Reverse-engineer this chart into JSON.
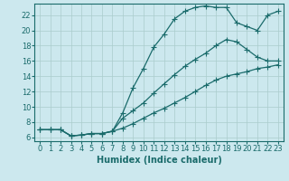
{
  "xlabel": "Humidex (Indice chaleur)",
  "ylabel": "",
  "xlim": [
    -0.5,
    23.5
  ],
  "ylim": [
    5.5,
    23.5
  ],
  "yticks": [
    6,
    8,
    10,
    12,
    14,
    16,
    18,
    20,
    22
  ],
  "xticks": [
    0,
    1,
    2,
    3,
    4,
    5,
    6,
    7,
    8,
    9,
    10,
    11,
    12,
    13,
    14,
    15,
    16,
    17,
    18,
    19,
    20,
    21,
    22,
    23
  ],
  "background_color": "#cce8ee",
  "grid_color": "#aacccc",
  "line_color": "#1a6b6b",
  "line1_x": [
    0,
    1,
    2,
    3,
    4,
    5,
    6,
    7,
    8,
    9,
    10,
    11,
    12,
    13,
    14,
    15,
    16,
    17,
    18,
    19,
    20,
    21,
    22,
    23
  ],
  "line1_y": [
    7.0,
    7.0,
    7.0,
    6.2,
    6.3,
    6.5,
    6.5,
    6.8,
    9.2,
    12.5,
    15.0,
    17.8,
    19.5,
    21.5,
    22.5,
    23.0,
    23.2,
    23.0,
    23.0,
    21.0,
    20.5,
    20.0,
    22.0,
    22.5
  ],
  "line2_x": [
    0,
    1,
    2,
    3,
    4,
    5,
    6,
    7,
    8,
    9,
    10,
    11,
    12,
    13,
    14,
    15,
    16,
    17,
    18,
    19,
    20,
    21,
    22,
    23
  ],
  "line2_y": [
    7.0,
    7.0,
    7.0,
    6.2,
    6.3,
    6.5,
    6.5,
    6.8,
    8.5,
    9.5,
    10.5,
    11.8,
    13.0,
    14.2,
    15.3,
    16.2,
    17.0,
    18.0,
    18.8,
    18.5,
    17.5,
    16.5,
    16.0,
    16.0
  ],
  "line3_x": [
    0,
    1,
    2,
    3,
    4,
    5,
    6,
    7,
    8,
    9,
    10,
    11,
    12,
    13,
    14,
    15,
    16,
    17,
    18,
    19,
    20,
    21,
    22,
    23
  ],
  "line3_y": [
    7.0,
    7.0,
    7.0,
    6.2,
    6.3,
    6.5,
    6.5,
    6.8,
    7.2,
    7.8,
    8.5,
    9.2,
    9.8,
    10.5,
    11.2,
    12.0,
    12.8,
    13.5,
    14.0,
    14.3,
    14.6,
    15.0,
    15.2,
    15.5
  ],
  "marker": "+",
  "markersize": 4,
  "linewidth": 0.9,
  "xlabel_fontsize": 7,
  "tick_fontsize": 6
}
